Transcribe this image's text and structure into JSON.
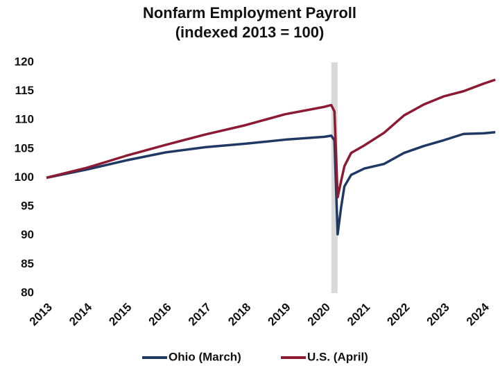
{
  "chart_data": {
    "type": "line",
    "title": "Nonfarm Employment Payroll",
    "subtitle": "(indexed 2013 = 100)",
    "x": [
      2013,
      2014,
      2015,
      2016,
      2017,
      2018,
      2019,
      2020,
      2020.17,
      2020.25,
      2020.33,
      2020.42,
      2020.5,
      2020.67,
      2021,
      2021.5,
      2022,
      2022.5,
      2023,
      2023.5,
      2024,
      2024.3
    ],
    "series": [
      {
        "name": "Ohio (March)",
        "color": "#1f3864",
        "values": [
          100,
          101.4,
          103,
          104.4,
          105.3,
          105.9,
          106.6,
          107.1,
          107.3,
          106.5,
          90.2,
          95,
          98.5,
          100.5,
          101.6,
          102.4,
          104.3,
          105.5,
          106.5,
          107.6,
          107.7,
          107.9
        ]
      },
      {
        "name": "U.S. (April)",
        "color": "#8b1a32",
        "values": [
          100,
          101.7,
          103.8,
          105.7,
          107.5,
          109.1,
          111,
          112.3,
          112.6,
          111.5,
          96.6,
          99.5,
          102,
          104.3,
          105.6,
          107.8,
          110.8,
          112.7,
          114.1,
          115,
          116.3,
          117
        ]
      }
    ],
    "shaded_region": [
      2020.17,
      2020.33
    ],
    "xlim": [
      2013,
      2024.4
    ],
    "xticks": [
      2013,
      2014,
      2015,
      2016,
      2017,
      2018,
      2019,
      2020,
      2021,
      2022,
      2023,
      2024
    ],
    "ylim": [
      80,
      120
    ],
    "yticks": [
      80,
      85,
      90,
      95,
      100,
      105,
      110,
      115,
      120
    ],
    "grid": false,
    "legend": "bottom"
  }
}
